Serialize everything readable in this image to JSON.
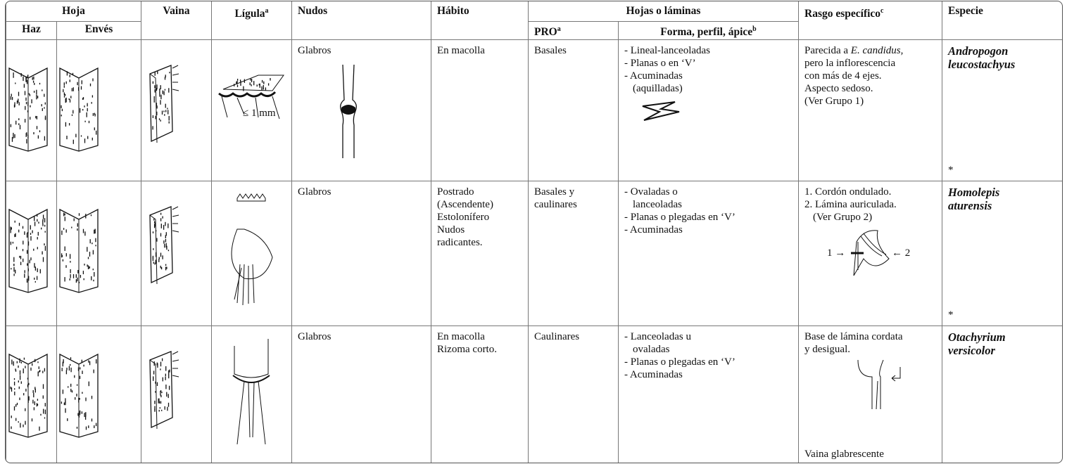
{
  "header": {
    "hoja": "Hoja",
    "haz": "Haz",
    "enves": "Envés",
    "vaina": "Vaina",
    "ligula": "Lígula",
    "ligula_sup": "a",
    "nudos": "Nudos",
    "habito": "Hábito",
    "hojas": "Hojas o láminas",
    "pro": "PRO",
    "pro_sup": "a",
    "forma": "Forma, perfil, ápice",
    "forma_sup": "b",
    "rasgo": "Rasgo específico",
    "rasgo_sup": "c",
    "especie": "Especie"
  },
  "rows": [
    {
      "ligula_note": "≤ 1 mm",
      "nudos": "Glabros",
      "habito": [
        "En macolla"
      ],
      "pro": [
        "Basales"
      ],
      "forma": [
        "- Lineal-lanceoladas",
        "- Planas o en ‘V’",
        "- Acuminadas",
        "(aquilladas)"
      ],
      "rasgo_intro": "Parecida a ",
      "rasgo_italic": "E. candidus",
      "rasgo_after": ",",
      "rasgo": [
        "pero la inflorescencia",
        "con más de 4 ejes.",
        "Aspecto sedoso.",
        "(Ver Grupo 1)"
      ],
      "especie": [
        "Andropogon",
        "leucostachyus"
      ],
      "mark": "*"
    },
    {
      "nudos": "Glabros",
      "habito": [
        "Postrado",
        "(Ascendente)",
        "Estolonífero",
        "Nudos",
        "radicantes."
      ],
      "pro": [
        "Basales y",
        "caulinares"
      ],
      "forma": [
        "- Ovaladas o",
        "lanceoladas",
        "- Planas o plegadas en ‘V’",
        "- Acuminadas"
      ],
      "rasgo": [
        "1. Cordón ondulado.",
        "2. Lámina auriculada.",
        "(Ver Grupo 2)"
      ],
      "rasgo_fig": [
        "1 →",
        "← 2"
      ],
      "especie": [
        "Homolepis",
        "aturensis"
      ],
      "mark": "*"
    },
    {
      "nudos": "Glabros",
      "habito": [
        "En macolla",
        "Rizoma corto."
      ],
      "pro": [
        "Caulinares"
      ],
      "forma": [
        "- Lanceoladas u",
        "ovaladas",
        "- Planas o plegadas en ‘V’",
        "- Acuminadas"
      ],
      "rasgo": [
        "Base de lámina cordata",
        "y desigual."
      ],
      "rasgo_foot": "Vaina glabrescente",
      "especie": [
        "Otachyrium",
        "versicolor"
      ]
    }
  ]
}
